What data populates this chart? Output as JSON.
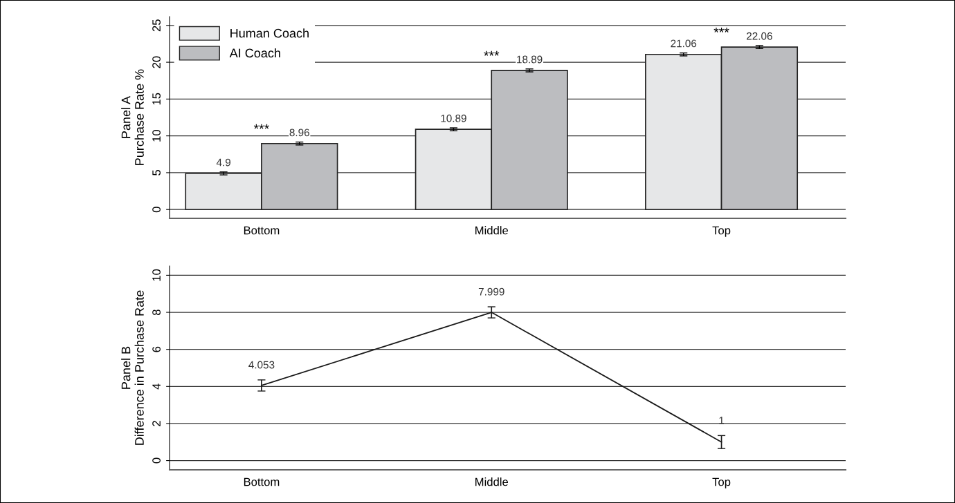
{
  "chart_data": [
    {
      "type": "bar",
      "ylabel": "Panel A\nPurchase Rate %",
      "categories": [
        "Bottom",
        "Middle",
        "Top"
      ],
      "series": [
        {
          "name": "Human Coach",
          "color": "#e6e7e8",
          "values": [
            4.9,
            10.89,
            21.06
          ],
          "errors": [
            0.2,
            0.2,
            0.2
          ]
        },
        {
          "name": "AI Coach",
          "color": "#bcbdc0",
          "values": [
            8.96,
            18.89,
            22.06
          ],
          "errors": [
            0.2,
            0.2,
            0.2
          ]
        }
      ],
      "ylim": [
        -1.2,
        26.2
      ],
      "yticks": [
        0,
        5,
        10,
        15,
        20,
        25
      ],
      "grid": "y",
      "legend": "top left",
      "data_labels": true,
      "annotations": [
        "***",
        "***",
        "***"
      ]
    },
    {
      "type": "line",
      "ylabel": "Panel B\nDifference in Purchase Rate",
      "categories": [
        "Bottom",
        "Middle",
        "Top"
      ],
      "series": [
        {
          "color": "#1a1a1a",
          "values": [
            4.053,
            7.999,
            1
          ],
          "errors": [
            0.3,
            0.3,
            0.35
          ]
        }
      ],
      "ylim": [
        -0.5,
        10.5
      ],
      "yticks": [
        0,
        2,
        4,
        6,
        8,
        10
      ],
      "grid": "y",
      "data_labels": true,
      "marker": "none",
      "line_style": "solid"
    }
  ]
}
